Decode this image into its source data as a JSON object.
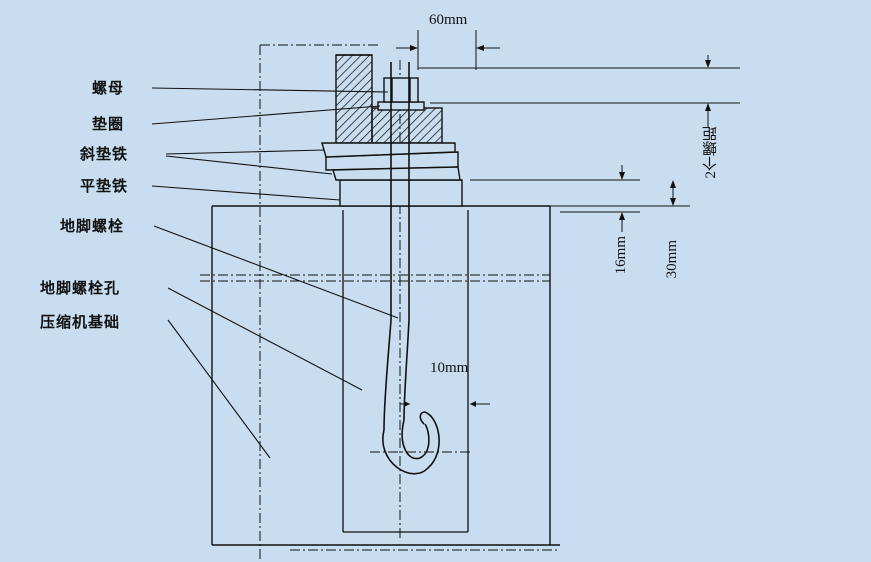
{
  "labels": {
    "nut": "螺母",
    "washer": "垫圈",
    "taper_shim": "斜垫铁",
    "flat_shim": "平垫铁",
    "anchor_bolt": "地脚螺栓",
    "anchor_bolt_hole": "地脚螺栓孔",
    "compressor_foundation": "压缩机基础"
  },
  "dimensions": {
    "top_gap": "60mm",
    "thread_length": "2个螺距",
    "shim_to_top": "16mm",
    "shim_depth": "30mm",
    "hook_gap": "10mm"
  },
  "colors": {
    "background": "#c8def0",
    "line": "#111111",
    "hatch": "#222222"
  }
}
